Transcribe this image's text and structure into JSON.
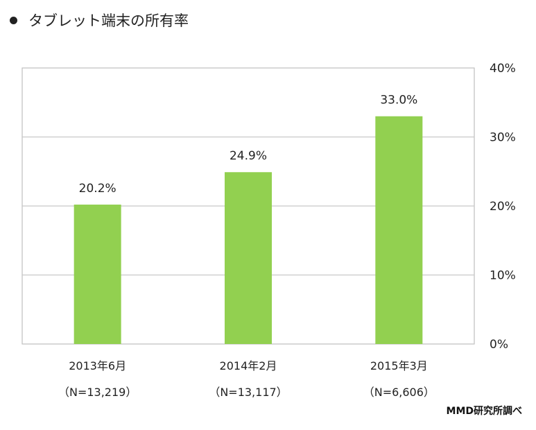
{
  "chart_data": {
    "type": "bar",
    "title": "タブレット端末の所有率",
    "categories": [
      "2013年6月",
      "2014年2月",
      "2015年3月"
    ],
    "sample_sizes": [
      "（N=13,219）",
      "（N=13,117）",
      "（N=6,606）"
    ],
    "values": [
      20.2,
      24.9,
      33.0
    ],
    "value_labels": [
      "20.2%",
      "24.9%",
      "33.0%"
    ],
    "yticks": [
      "0%",
      "10%",
      "20%",
      "30%",
      "40%"
    ],
    "ylim": [
      0,
      40
    ],
    "ytick_values": [
      0,
      10,
      20,
      30,
      40
    ],
    "grid": true,
    "bar_color": "#92d050",
    "yaxis_side": "right"
  },
  "credit": "MMD研究所調べ"
}
